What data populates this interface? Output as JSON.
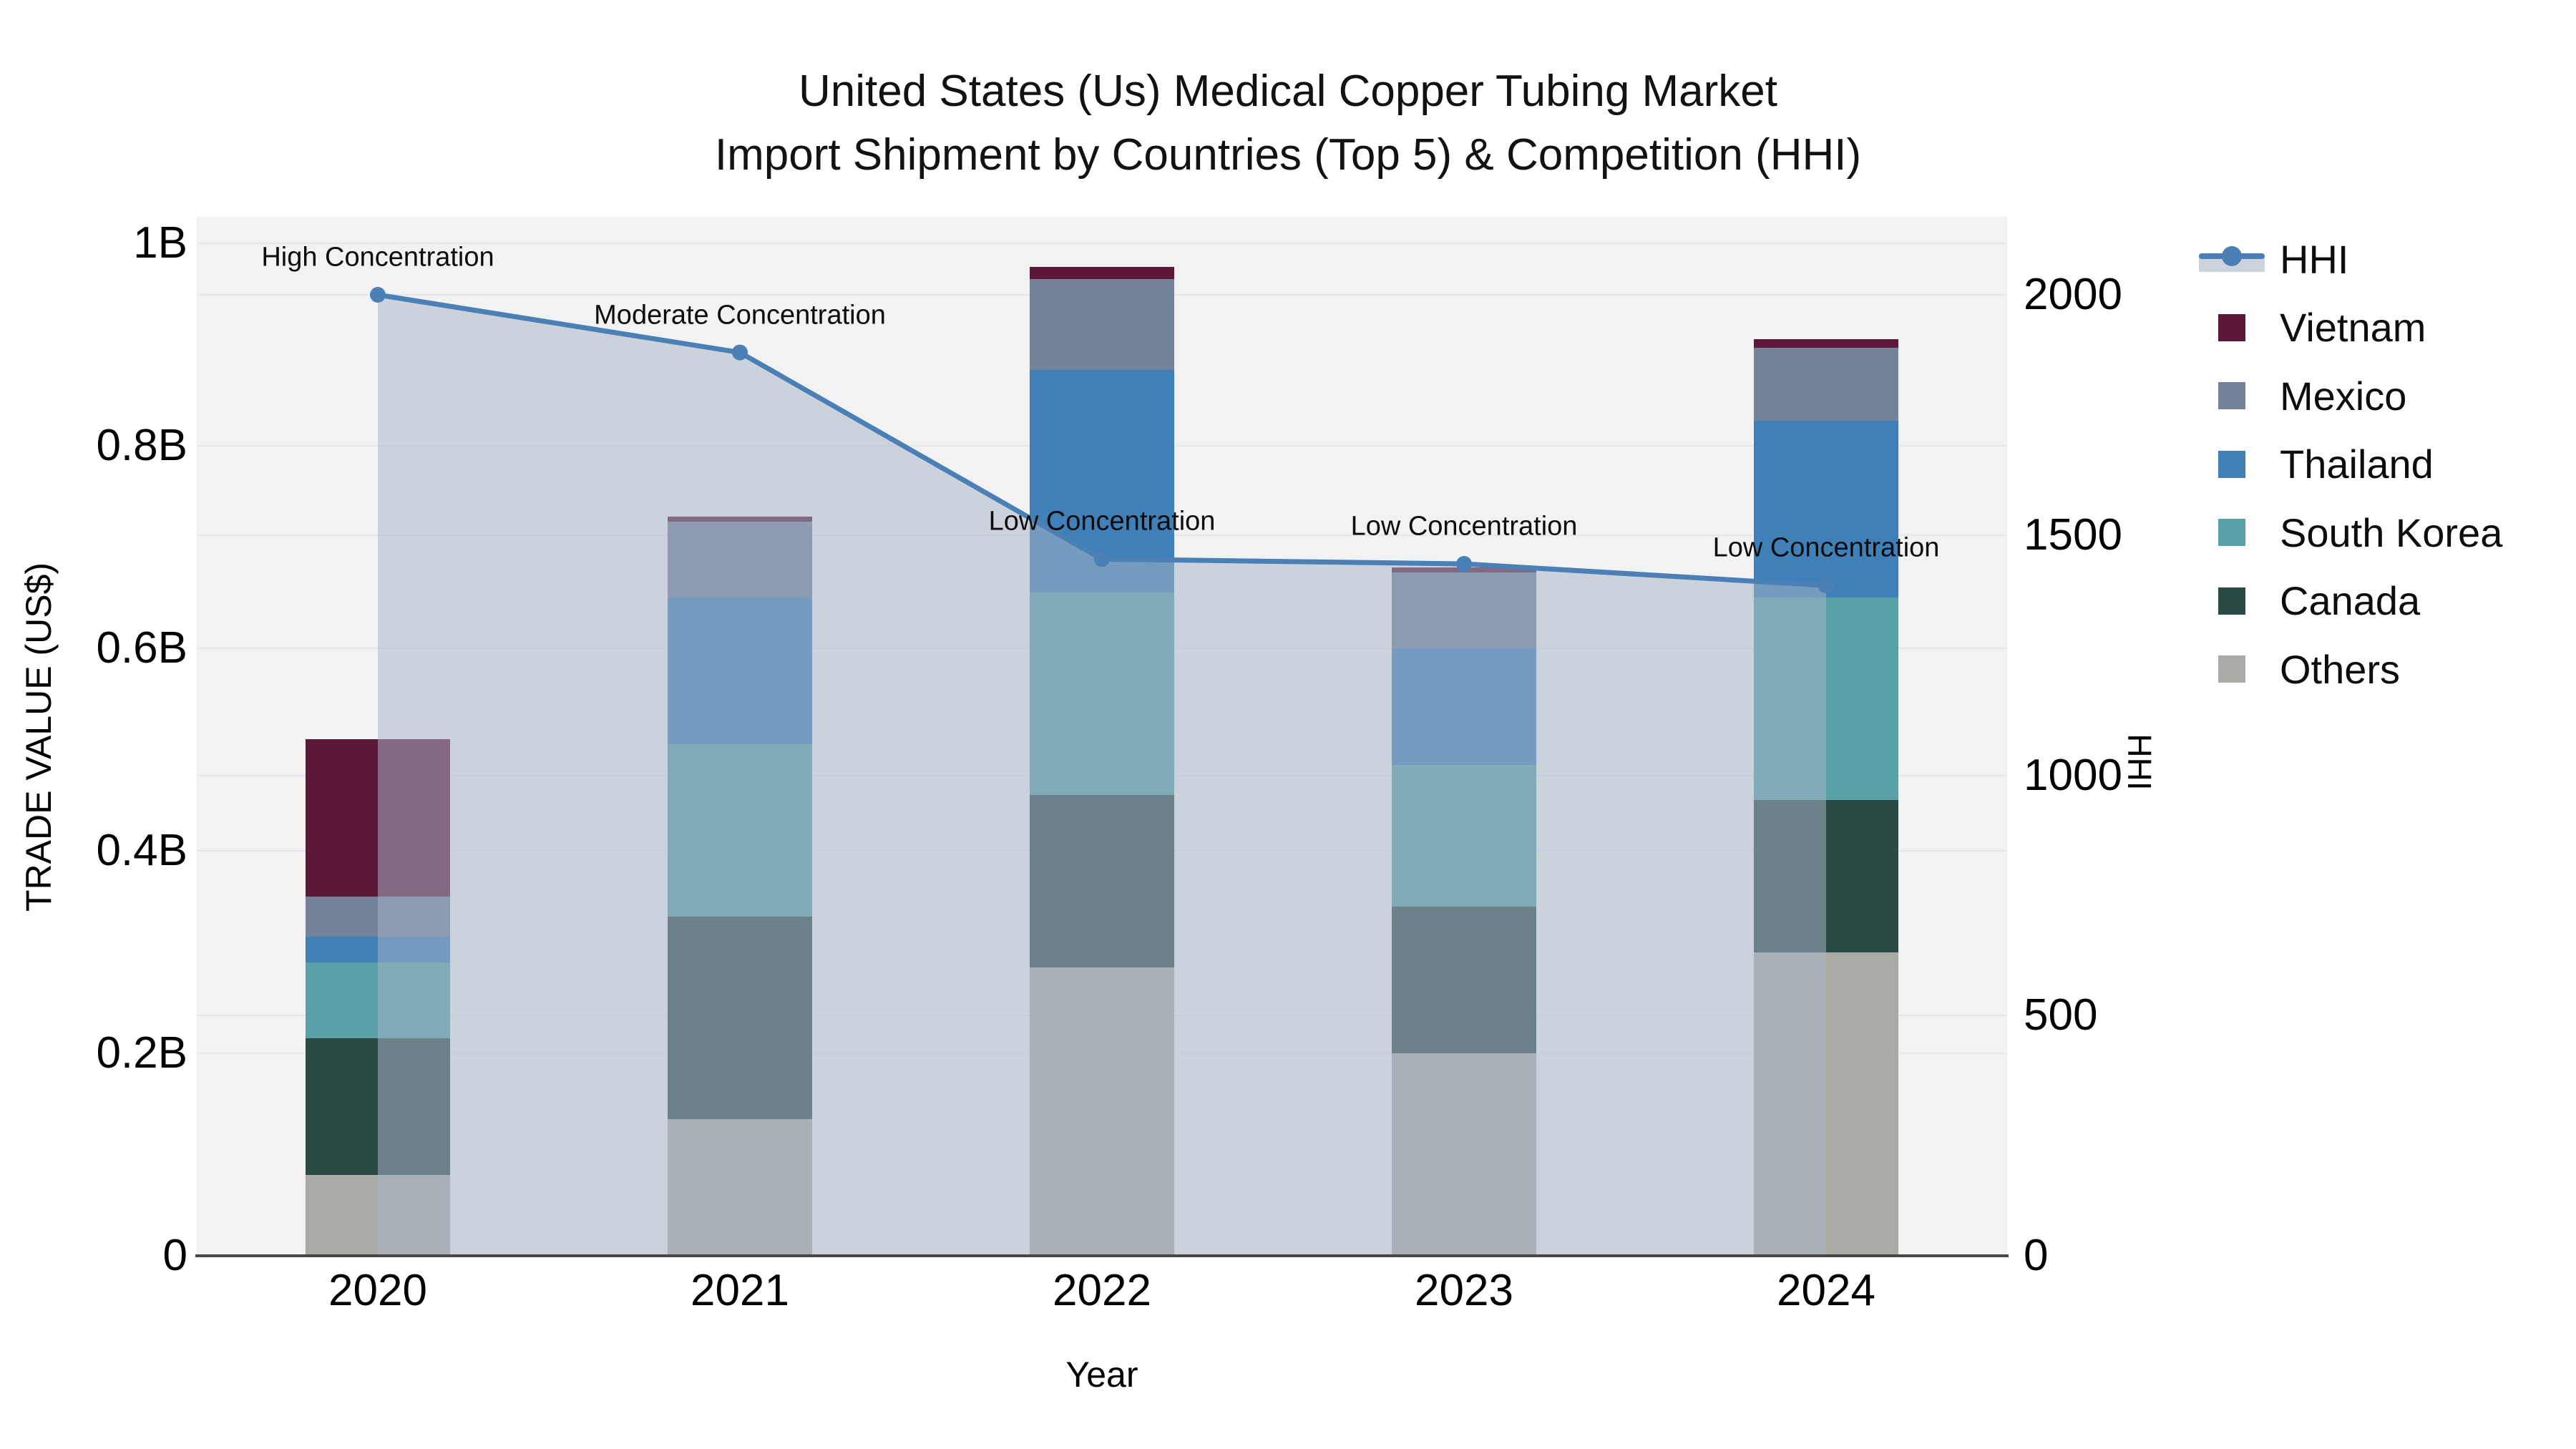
{
  "title": {
    "line1": "United States (Us) Medical Copper Tubing Market",
    "line2": "Import Shipment by Countries (Top 5) & Competition (HHI)"
  },
  "axes": {
    "left": {
      "title": "TRADE VALUE (US$)",
      "ticks": [
        {
          "value": 0,
          "label": "0"
        },
        {
          "value": 0.2,
          "label": "0.2B"
        },
        {
          "value": 0.4,
          "label": "0.4B"
        },
        {
          "value": 0.6,
          "label": "0.6B"
        },
        {
          "value": 0.8,
          "label": "0.8B"
        },
        {
          "value": 1.0,
          "label": "1B"
        }
      ]
    },
    "right": {
      "title": "HHI",
      "ticks": [
        {
          "value": 0,
          "label": "0"
        },
        {
          "value": 500,
          "label": "500"
        },
        {
          "value": 1000,
          "label": "1000"
        },
        {
          "value": 1500,
          "label": "1500"
        },
        {
          "value": 2000,
          "label": "2000"
        }
      ]
    },
    "x": {
      "title": "Year"
    }
  },
  "chart_data": {
    "type": "combo: stacked-bar + line-area",
    "categories": [
      "2020",
      "2021",
      "2022",
      "2023",
      "2024"
    ],
    "value_unit": "billion US$",
    "series": [
      {
        "name": "Others",
        "color": "#ABABA5",
        "values": [
          0.08,
          0.135,
          0.285,
          0.2,
          0.3
        ]
      },
      {
        "name": "Canada",
        "color": "#2C4A45",
        "values": [
          0.135,
          0.2,
          0.17,
          0.145,
          0.15
        ]
      },
      {
        "name": "South Korea",
        "color": "#59A1A6",
        "values": [
          0.075,
          0.17,
          0.2,
          0.14,
          0.2
        ]
      },
      {
        "name": "Thailand",
        "color": "#4080B8",
        "values": [
          0.025,
          0.145,
          0.22,
          0.115,
          0.175
        ]
      },
      {
        "name": "Mexico",
        "color": "#74839A",
        "values": [
          0.04,
          0.075,
          0.09,
          0.075,
          0.072
        ]
      },
      {
        "name": "Vietnam",
        "color": "#5D1737",
        "values": [
          0.155,
          0.005,
          0.012,
          0.005,
          0.008
        ]
      }
    ],
    "line": {
      "name": "HHI",
      "axis": "right",
      "color": "#4A80B5",
      "values": [
        2000,
        1880,
        1450,
        1440,
        1395
      ]
    },
    "annotations": [
      "High Concentration",
      "Moderate Concentration",
      "Low Concentration",
      "Low Concentration",
      "Low Concentration"
    ],
    "ylim_left": [
      0,
      1.026
    ],
    "ylim_right": [
      0,
      2162
    ],
    "area_fill": "rgba(167,180,199,0.52)",
    "grid": true,
    "legend_position": "right"
  },
  "legend": {
    "items": [
      {
        "label": "HHI",
        "type": "line",
        "color": "#4A80B5"
      },
      {
        "label": "Vietnam",
        "type": "swatch",
        "color": "#5D1737"
      },
      {
        "label": "Mexico",
        "type": "swatch",
        "color": "#74839A"
      },
      {
        "label": "Thailand",
        "type": "swatch",
        "color": "#4080B8"
      },
      {
        "label": "South Korea",
        "type": "swatch",
        "color": "#59A1A6"
      },
      {
        "label": "Canada",
        "type": "swatch",
        "color": "#2C4A45"
      },
      {
        "label": "Others",
        "type": "swatch",
        "color": "#ABABA5"
      }
    ]
  },
  "colors": {
    "page_bg": "#FFFFFF",
    "plot_bg": "#F2F2F2",
    "gridline": "#E6E8EC",
    "axis_line": "#474747",
    "text": "#111111"
  }
}
